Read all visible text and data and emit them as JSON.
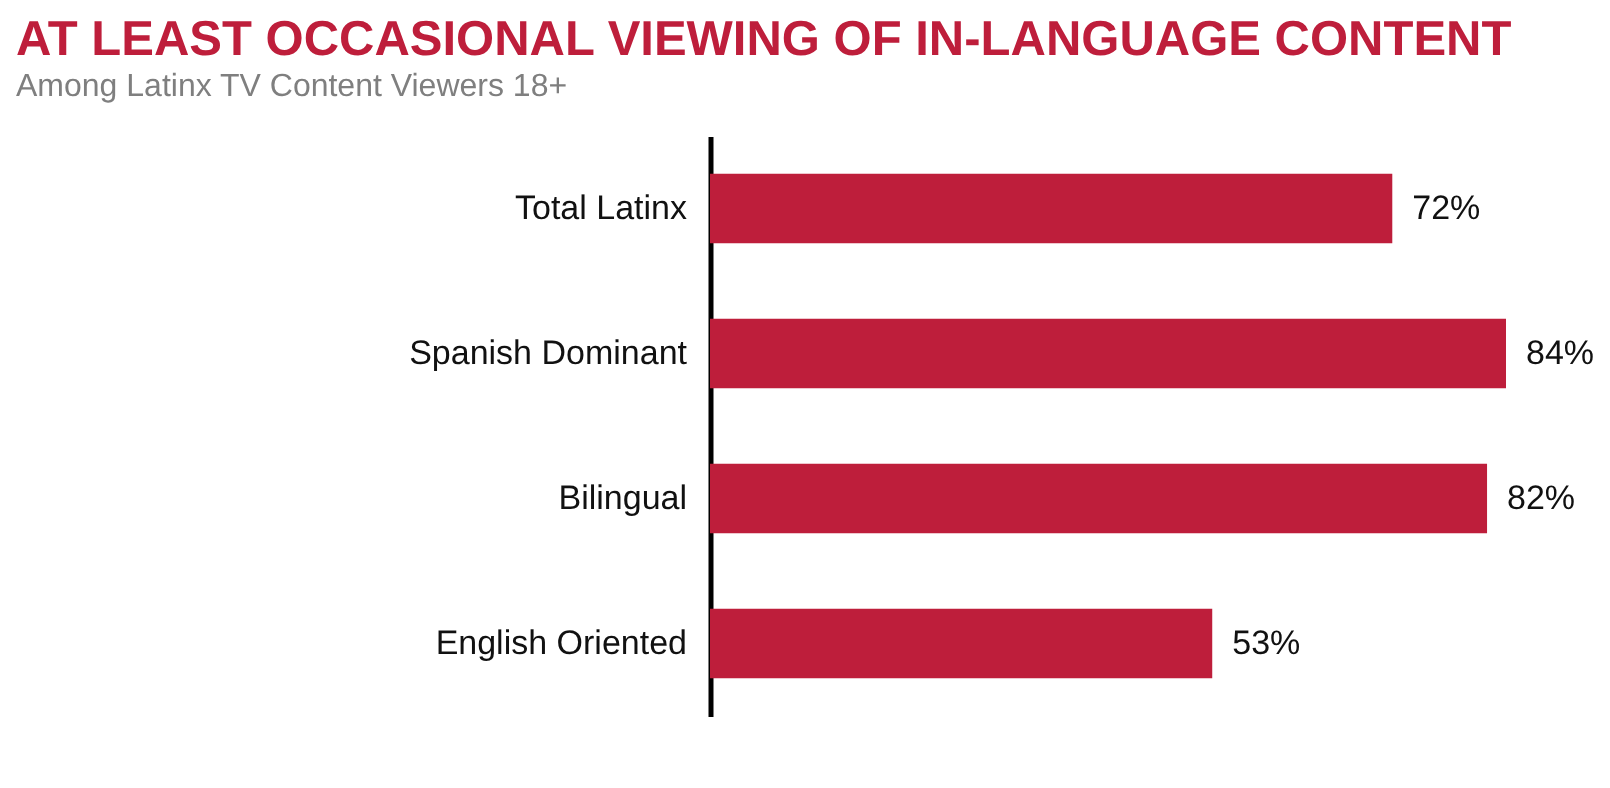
{
  "chart_data": {
    "type": "bar",
    "orientation": "horizontal",
    "title": "AT LEAST OCCASIONAL VIEWING OF IN-LANGUAGE CONTENT",
    "subtitle": "Among Latinx TV Content Viewers 18+",
    "categories": [
      "Total Latinx",
      "Spanish Dominant",
      "Bilingual",
      "English Oriented"
    ],
    "values": [
      72,
      84,
      82,
      53
    ],
    "value_labels": [
      "72%",
      "84%",
      "82%",
      "53%"
    ],
    "color": "#be1e3b",
    "grid": false
  }
}
